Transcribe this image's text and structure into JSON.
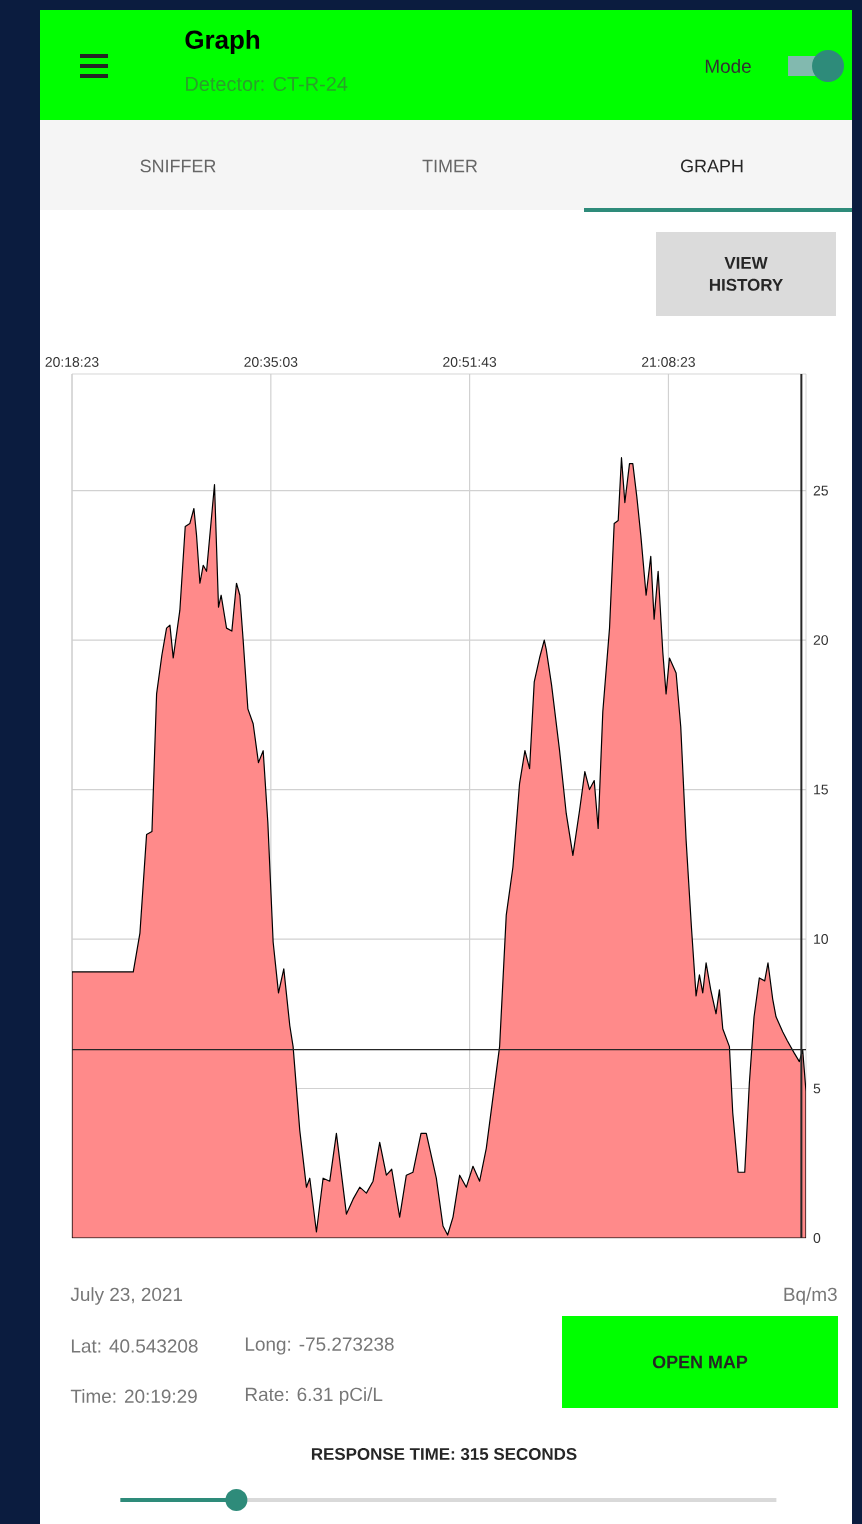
{
  "chart_data": {
    "type": "area",
    "title": "Graph",
    "subtitle": "Detector: CT-R-24",
    "annotations": [
      "Mode",
      "SNIFFER",
      "TIMER",
      "GRAPH",
      "VIEW HISTORY",
      "July 23, 2021",
      "Lat: 40.543208",
      "Long: -75.273238",
      "Time: 20:19:29",
      "Rate: 6.31 pCi/L",
      "OPEN MAP",
      "RESPONSE TIME: 315 SECONDS",
      "Bq/m3"
    ],
    "xlim": [
      20.3064,
      21.3319
    ],
    "ylim": [
      0,
      28.9
    ],
    "xticks": [
      {
        "value": 20.3064,
        "label": "20:18:23"
      },
      {
        "value": 20.5842,
        "label": "20:35:03"
      },
      {
        "value": 20.8619,
        "label": "20:51:43"
      },
      {
        "value": 21.1397,
        "label": "21:08:23"
      }
    ],
    "yticks": [
      0,
      5,
      10,
      15,
      20,
      25
    ],
    "grid": true,
    "marker": "none",
    "line_style": "solid",
    "ref_lines": [
      {
        "axis": "y",
        "value": 6.3
      },
      {
        "axis": "x",
        "value": 21.3254
      }
    ],
    "series": [
      {
        "color": "#ff8a8a",
        "x": [
          20.3064,
          20.392,
          20.4013,
          20.4106,
          20.4181,
          20.4246,
          20.432,
          20.4385,
          20.4432,
          20.4478,
          20.4571,
          20.4646,
          20.4711,
          20.4767,
          20.4804,
          20.4851,
          20.4897,
          20.4944,
          20.5055,
          20.5111,
          20.5148,
          20.5223,
          20.5297,
          20.5362,
          20.5409,
          20.5455,
          20.5521,
          20.5595,
          20.5669,
          20.5735,
          20.58,
          20.5874,
          20.5949,
          20.6023,
          20.6107,
          20.6153,
          20.6246,
          20.6339,
          20.6386,
          20.6479,
          20.6572,
          20.6665,
          20.6758,
          20.6898,
          20.6991,
          20.7084,
          20.7177,
          20.727,
          20.7363,
          20.7456,
          20.7531,
          20.7642,
          20.7735,
          20.7828,
          20.794,
          20.8014,
          20.8154,
          20.8247,
          20.8312,
          20.8387,
          20.848,
          20.8573,
          20.8666,
          20.8759,
          20.8852,
          20.8945,
          20.9038,
          20.9131,
          20.9224,
          20.9317,
          20.9392,
          20.9457,
          20.9522,
          20.9596,
          20.9662,
          20.9689,
          20.9764,
          20.9876,
          20.9969,
          21.0062,
          21.0155,
          21.0229,
          21.0294,
          21.036,
          21.0415,
          21.048,
          21.0574,
          21.0639,
          21.0695,
          21.0741,
          21.0788,
          21.0853,
          21.0899,
          21.0955,
          21.1011,
          21.1085,
          21.115,
          21.1197,
          21.1253,
          21.1318,
          21.1364,
          21.1411,
          21.1504,
          21.1569,
          21.1644,
          21.1718,
          21.1783,
          21.183,
          21.1876,
          21.1923,
          21.1988,
          21.2062,
          21.2109,
          21.2156,
          21.2249,
          21.2295,
          21.237,
          21.2463,
          21.2528,
          21.2593,
          21.2667,
          21.2742,
          21.2788,
          21.2853,
          21.29,
          21.2993,
          21.3058,
          21.3151,
          21.3226,
          21.3272,
          21.3319
        ],
        "values": [
          8.9,
          8.9,
          10.2,
          13.5,
          13.6,
          18.2,
          19.5,
          20.4,
          20.5,
          19.4,
          21,
          23.8,
          23.9,
          24.4,
          23.5,
          21.9,
          22.5,
          22.3,
          25.2,
          21.1,
          21.5,
          20.4,
          20.3,
          21.9,
          21.5,
          20,
          17.7,
          17.2,
          15.9,
          16.3,
          13.9,
          9.9,
          8.2,
          9,
          7.1,
          6.4,
          3.6,
          1.7,
          2,
          0.2,
          2,
          1.9,
          3.5,
          0.8,
          1.3,
          1.7,
          1.5,
          1.9,
          3.2,
          2.1,
          2.3,
          0.7,
          2.1,
          2.2,
          3.5,
          3.5,
          2,
          0.4,
          0.1,
          0.7,
          2.1,
          1.7,
          2.4,
          1.9,
          3,
          4.7,
          6.4,
          10.8,
          12.4,
          15.2,
          16.3,
          15.7,
          18.6,
          19.4,
          20,
          19.7,
          18.5,
          16.3,
          14.2,
          12.8,
          14.3,
          15.6,
          15,
          15.3,
          13.7,
          17.6,
          20.4,
          23.9,
          24,
          26.1,
          24.6,
          25.9,
          25.9,
          24.8,
          23.5,
          21.5,
          22.8,
          20.7,
          22.3,
          19.6,
          18.2,
          19.4,
          18.9,
          17.1,
          13.3,
          10.4,
          8.1,
          8.8,
          8.2,
          9.2,
          8.3,
          7.5,
          8.3,
          7,
          6.4,
          4.2,
          2.2,
          2.2,
          5.2,
          7.4,
          8.7,
          8.6,
          9.2,
          8,
          7.4,
          6.9,
          6.6,
          6.2,
          5.9,
          6.3,
          4.9
        ]
      }
    ]
  }
}
